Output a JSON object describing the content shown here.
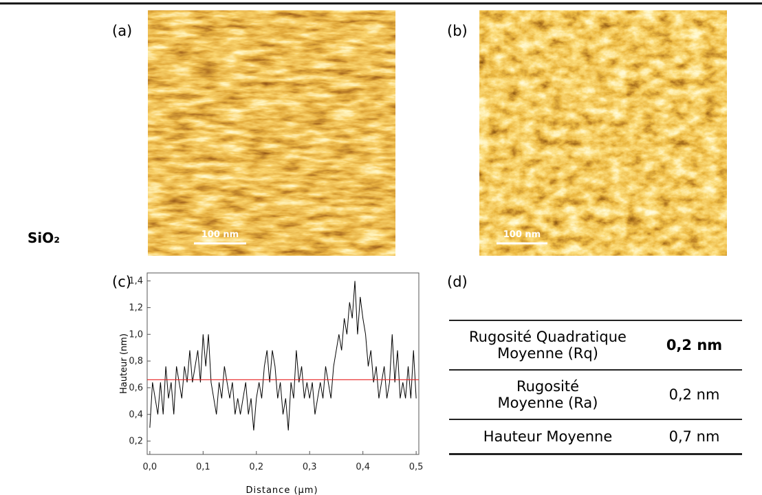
{
  "row_label": "SiO₂",
  "panel_labels": [
    "(a)",
    "(b)",
    "(c)",
    "(d)"
  ],
  "images": [
    {
      "scale_bar": "100 nm"
    },
    {
      "scale_bar": "100 nm"
    }
  ],
  "chart_data": {
    "type": "line",
    "x_label": "Distance (µm)",
    "y_label": "Hauteur (nm)",
    "x": [
      0,
      0.005,
      0.01,
      0.015,
      0.02,
      0.025,
      0.03,
      0.035,
      0.04,
      0.045,
      0.05,
      0.055,
      0.06,
      0.065,
      0.07,
      0.075,
      0.08,
      0.085,
      0.09,
      0.095,
      0.1,
      0.105,
      0.11,
      0.115,
      0.12,
      0.125,
      0.13,
      0.135,
      0.14,
      0.145,
      0.15,
      0.155,
      0.16,
      0.165,
      0.17,
      0.175,
      0.18,
      0.185,
      0.19,
      0.195,
      0.2,
      0.205,
      0.21,
      0.215,
      0.22,
      0.225,
      0.23,
      0.235,
      0.24,
      0.245,
      0.25,
      0.255,
      0.26,
      0.265,
      0.27,
      0.275,
      0.28,
      0.285,
      0.29,
      0.295,
      0.3,
      0.305,
      0.31,
      0.315,
      0.32,
      0.325,
      0.33,
      0.335,
      0.34,
      0.345,
      0.35,
      0.355,
      0.36,
      0.365,
      0.37,
      0.375,
      0.38,
      0.385,
      0.39,
      0.395,
      0.4,
      0.405,
      0.41,
      0.415,
      0.42,
      0.425,
      0.43,
      0.435,
      0.44,
      0.445,
      0.45,
      0.455,
      0.46,
      0.465,
      0.47,
      0.475,
      0.48,
      0.485,
      0.49,
      0.495,
      0.5
    ],
    "series": [
      {
        "color": "#000000",
        "values": [
          0.3,
          0.64,
          0.52,
          0.4,
          0.64,
          0.4,
          0.76,
          0.52,
          0.64,
          0.4,
          0.76,
          0.64,
          0.52,
          0.76,
          0.64,
          0.88,
          0.64,
          0.76,
          0.88,
          0.64,
          1.0,
          0.76,
          1.0,
          0.64,
          0.52,
          0.4,
          0.64,
          0.52,
          0.76,
          0.64,
          0.52,
          0.64,
          0.4,
          0.52,
          0.4,
          0.52,
          0.64,
          0.4,
          0.52,
          0.28,
          0.52,
          0.64,
          0.52,
          0.76,
          0.88,
          0.64,
          0.88,
          0.76,
          0.52,
          0.64,
          0.4,
          0.52,
          0.28,
          0.64,
          0.52,
          0.88,
          0.64,
          0.76,
          0.52,
          0.64,
          0.52,
          0.64,
          0.4,
          0.52,
          0.64,
          0.52,
          0.76,
          0.64,
          0.52,
          0.76,
          0.88,
          1.0,
          0.88,
          1.12,
          1.0,
          1.24,
          1.12,
          1.4,
          1.0,
          1.28,
          1.12,
          1.0,
          0.76,
          0.88,
          0.64,
          0.76,
          0.52,
          0.64,
          0.76,
          0.52,
          0.64,
          1.0,
          0.64,
          0.88,
          0.52,
          0.64,
          0.52,
          0.76,
          0.52,
          0.88,
          0.52
        ]
      }
    ],
    "mean_line": {
      "value": 0.66,
      "color": "#e82020"
    },
    "xlim": [
      -0.005,
      0.505
    ],
    "ylim": [
      0.1,
      1.46
    ],
    "xticks": [
      {
        "value": 0,
        "label": "0,0"
      },
      {
        "value": 0.1,
        "label": "0,1"
      },
      {
        "value": 0.2,
        "label": "0,2"
      },
      {
        "value": 0.3,
        "label": "0,3"
      },
      {
        "value": 0.4,
        "label": "0,4"
      },
      {
        "value": 0.5,
        "label": "0,5"
      }
    ],
    "yticks": [
      {
        "value": 0.2,
        "label": "0,2"
      },
      {
        "value": 0.4,
        "label": "0,4"
      },
      {
        "value": 0.6,
        "label": "0,6"
      },
      {
        "value": 0.8,
        "label": "0,8"
      },
      {
        "value": 1.0,
        "label": "1,0"
      },
      {
        "value": 1.2,
        "label": "1,2"
      },
      {
        "value": 1.4,
        "label": "1,4"
      }
    ]
  },
  "table": {
    "rows": [
      [
        "Rugosité Quadratique Moyenne (Rq)",
        "0,2 nm"
      ],
      [
        "Rugosité Moyenne (Ra)",
        "0,2 nm"
      ],
      [
        "Hauteur Moyenne",
        "0,7 nm"
      ]
    ]
  }
}
